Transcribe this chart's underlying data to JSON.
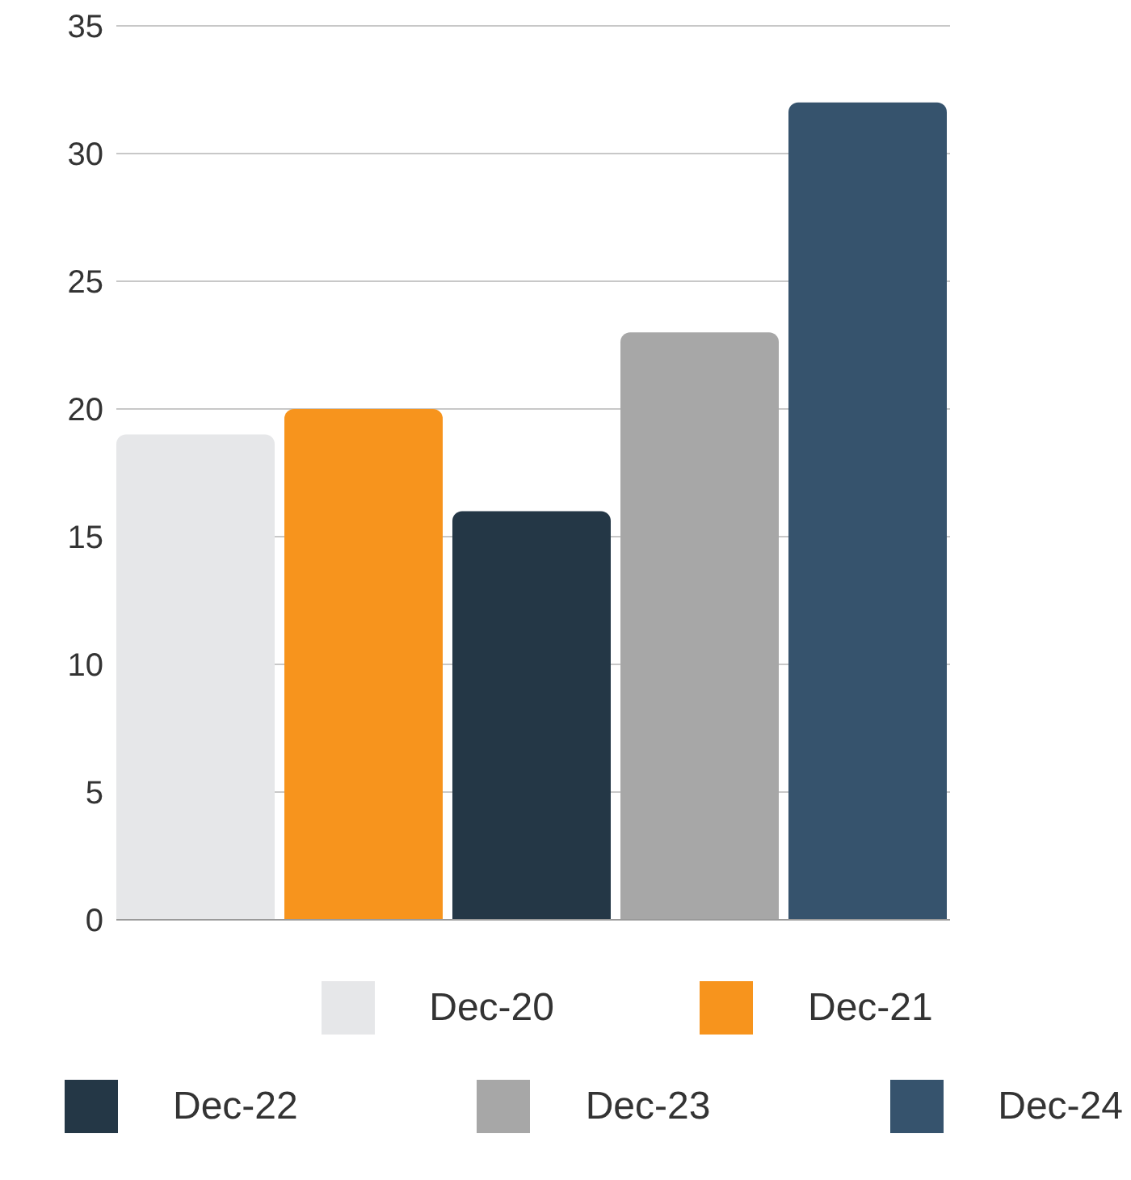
{
  "chart_data": {
    "type": "bar",
    "categories": [
      null
    ],
    "series": [
      {
        "name": "Dec-20",
        "color": "#e6e7e9",
        "values": [
          19
        ]
      },
      {
        "name": "Dec-21",
        "color": "#f7941d",
        "values": [
          20
        ]
      },
      {
        "name": "Dec-22",
        "color": "#243746",
        "values": [
          16
        ]
      },
      {
        "name": "Dec-23",
        "color": "#a7a7a7",
        "values": [
          23
        ]
      },
      {
        "name": "Dec-24",
        "color": "#36536d",
        "values": [
          32
        ]
      }
    ],
    "ylim": [
      0,
      35
    ],
    "yticks": [
      0,
      5,
      10,
      15,
      20,
      25,
      30,
      35
    ],
    "grid": "y",
    "legend": "bottom"
  }
}
